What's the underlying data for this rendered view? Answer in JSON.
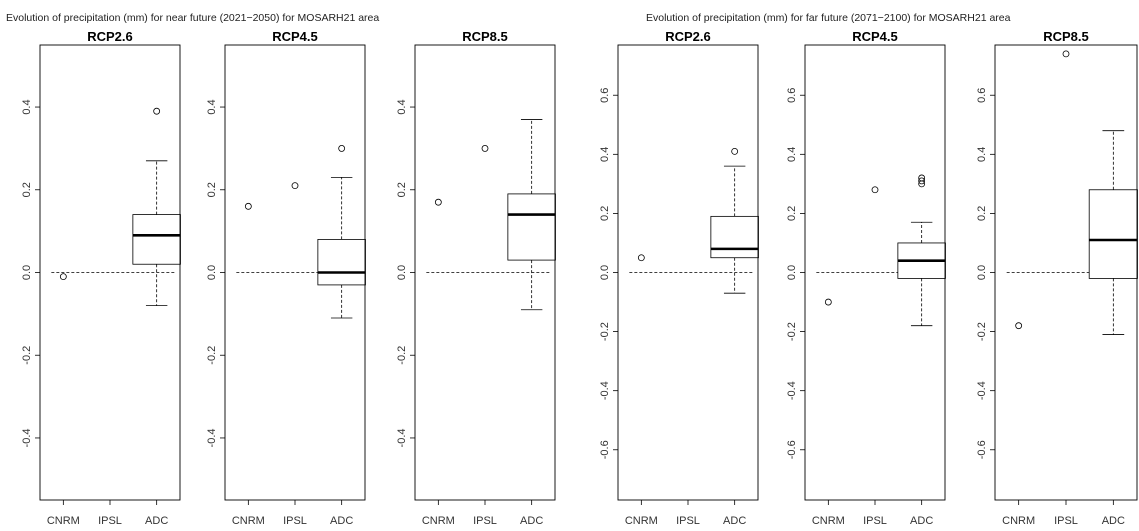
{
  "figures": [
    {
      "title": "Evolution of precipitation (mm) for near future (2021−2050) for MOSARH21 area"
    },
    {
      "title": "Evolution of precipitation (mm) for far future (2071−2100) for MOSARH21 area"
    }
  ],
  "chart_data": [
    {
      "type": "box",
      "title": "RCP2.6",
      "figure": 0,
      "categories": [
        "CNRM",
        "IPSL",
        "ADC"
      ],
      "ylim": [
        -0.55,
        0.55
      ],
      "yticks": [
        "-0.4",
        "-0.2",
        "0.0",
        "0.2",
        "0.4"
      ],
      "ytick_values": [
        -0.4,
        -0.2,
        0,
        0.2,
        0.4
      ],
      "reference_line": 0,
      "points": [
        {
          "category": "CNRM",
          "value": -0.01
        }
      ],
      "boxes": [
        {
          "category": "ADC",
          "whisker_low": -0.08,
          "q1": 0.02,
          "median": 0.09,
          "q3": 0.14,
          "whisker_high": 0.27,
          "outliers": [
            0.39
          ]
        }
      ]
    },
    {
      "type": "box",
      "title": "RCP4.5",
      "figure": 0,
      "categories": [
        "CNRM",
        "IPSL",
        "ADC"
      ],
      "ylim": [
        -0.55,
        0.55
      ],
      "yticks": [
        "-0.4",
        "-0.2",
        "0.0",
        "0.2",
        "0.4"
      ],
      "ytick_values": [
        -0.4,
        -0.2,
        0,
        0.2,
        0.4
      ],
      "reference_line": 0,
      "points": [
        {
          "category": "CNRM",
          "value": 0.16
        },
        {
          "category": "IPSL",
          "value": 0.21
        }
      ],
      "boxes": [
        {
          "category": "ADC",
          "whisker_low": -0.11,
          "q1": -0.03,
          "median": 0.0,
          "q3": 0.08,
          "whisker_high": 0.23,
          "outliers": [
            0.3
          ]
        }
      ]
    },
    {
      "type": "box",
      "title": "RCP8.5",
      "figure": 0,
      "categories": [
        "CNRM",
        "IPSL",
        "ADC"
      ],
      "ylim": [
        -0.55,
        0.55
      ],
      "yticks": [
        "-0.4",
        "-0.2",
        "0.0",
        "0.2",
        "0.4"
      ],
      "ytick_values": [
        -0.4,
        -0.2,
        0,
        0.2,
        0.4
      ],
      "reference_line": 0,
      "points": [
        {
          "category": "CNRM",
          "value": 0.17
        },
        {
          "category": "IPSL",
          "value": 0.3
        }
      ],
      "boxes": [
        {
          "category": "ADC",
          "whisker_low": -0.09,
          "q1": 0.03,
          "median": 0.14,
          "q3": 0.19,
          "whisker_high": 0.37,
          "outliers": []
        }
      ]
    },
    {
      "type": "box",
      "title": "RCP2.6",
      "figure": 1,
      "categories": [
        "CNRM",
        "IPSL",
        "ADC"
      ],
      "ylim": [
        -0.77,
        0.77
      ],
      "yticks": [
        "-0.6",
        "-0.4",
        "-0.2",
        "0.0",
        "0.2",
        "0.4",
        "0.6"
      ],
      "ytick_values": [
        -0.6,
        -0.4,
        -0.2,
        0,
        0.2,
        0.4,
        0.6
      ],
      "reference_line": 0,
      "points": [
        {
          "category": "CNRM",
          "value": 0.05
        }
      ],
      "boxes": [
        {
          "category": "ADC",
          "whisker_low": -0.07,
          "q1": 0.05,
          "median": 0.08,
          "q3": 0.19,
          "whisker_high": 0.36,
          "outliers": [
            0.41
          ]
        }
      ]
    },
    {
      "type": "box",
      "title": "RCP4.5",
      "figure": 1,
      "categories": [
        "CNRM",
        "IPSL",
        "ADC"
      ],
      "ylim": [
        -0.77,
        0.77
      ],
      "yticks": [
        "-0.6",
        "-0.4",
        "-0.2",
        "0.0",
        "0.2",
        "0.4",
        "0.6"
      ],
      "ytick_values": [
        -0.6,
        -0.4,
        -0.2,
        0,
        0.2,
        0.4,
        0.6
      ],
      "reference_line": 0,
      "points": [
        {
          "category": "CNRM",
          "value": -0.1
        },
        {
          "category": "IPSL",
          "value": 0.28
        }
      ],
      "boxes": [
        {
          "category": "ADC",
          "whisker_low": -0.18,
          "q1": -0.02,
          "median": 0.04,
          "q3": 0.1,
          "whisker_high": 0.17,
          "outliers": [
            0.3,
            0.31,
            0.32
          ]
        }
      ]
    },
    {
      "type": "box",
      "title": "RCP8.5",
      "figure": 1,
      "categories": [
        "CNRM",
        "IPSL",
        "ADC"
      ],
      "ylim": [
        -0.77,
        0.77
      ],
      "yticks": [
        "-0.6",
        "-0.4",
        "-0.2",
        "0.0",
        "0.2",
        "0.4",
        "0.6"
      ],
      "ytick_values": [
        -0.6,
        -0.4,
        -0.2,
        0,
        0.2,
        0.4,
        0.6
      ],
      "reference_line": 0,
      "points": [
        {
          "category": "CNRM",
          "value": -0.18
        },
        {
          "category": "IPSL",
          "value": 0.74
        }
      ],
      "boxes": [
        {
          "category": "ADC",
          "whisker_low": -0.21,
          "q1": -0.02,
          "median": 0.11,
          "q3": 0.28,
          "whisker_high": 0.48,
          "outliers": []
        }
      ]
    }
  ]
}
